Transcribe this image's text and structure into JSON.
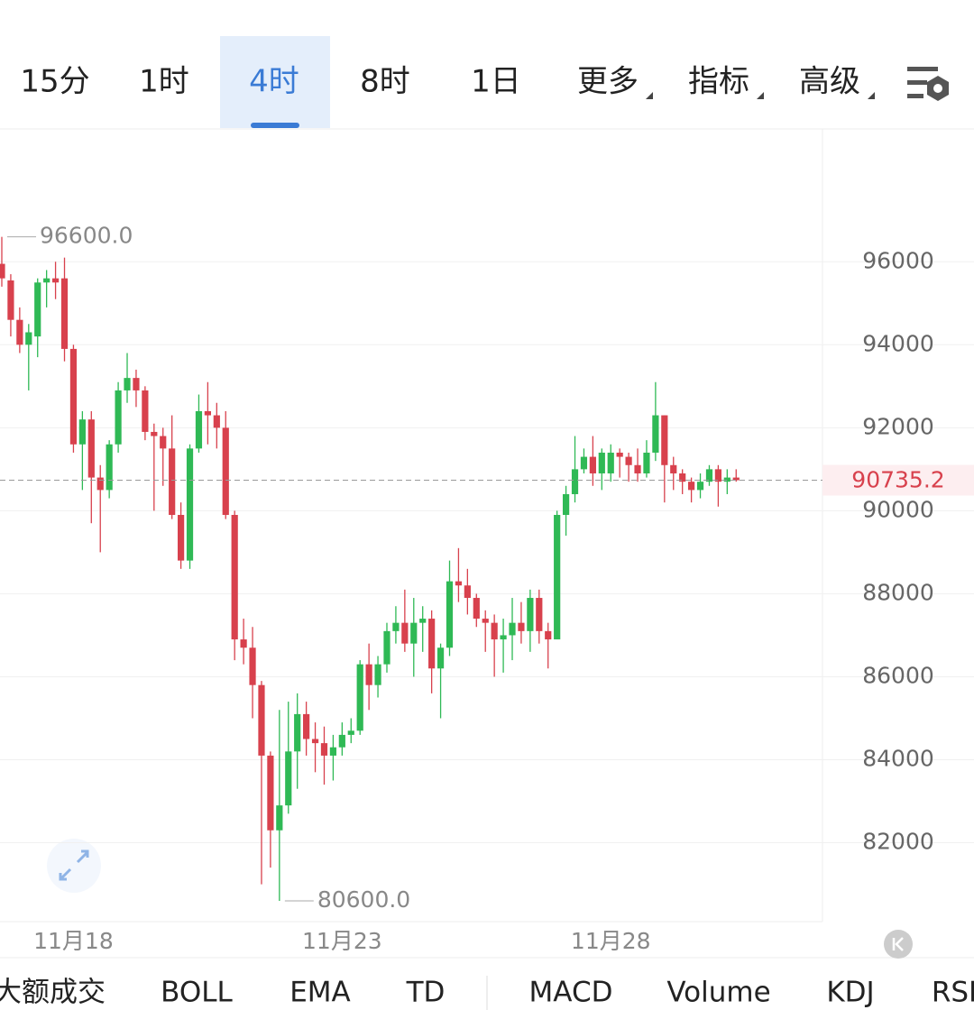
{
  "tabs": [
    "15分",
    "1时",
    "4时",
    "8时",
    "1日",
    "更多",
    "指标",
    "高级"
  ],
  "active_tab_index": 2,
  "indicator_tabs": [
    "大额成交",
    "BOLL",
    "EMA",
    "TD",
    "MACD",
    "Volume",
    "KDJ",
    "RSI"
  ],
  "chart_data": {
    "type": "candlestick",
    "categories": [
      null,
      null,
      null,
      null,
      null,
      null,
      null,
      null,
      "11月18",
      null,
      null,
      null,
      null,
      null,
      null,
      null,
      null,
      null,
      null,
      null,
      null,
      null,
      null,
      null,
      null,
      null,
      null,
      null,
      null,
      null,
      null,
      null,
      null,
      null,
      null,
      null,
      null,
      null,
      "11月23",
      null,
      null,
      null,
      null,
      null,
      null,
      null,
      null,
      null,
      null,
      null,
      null,
      null,
      null,
      null,
      null,
      null,
      null,
      null,
      null,
      null,
      null,
      null,
      null,
      null,
      null,
      null,
      null,
      null,
      "11月28",
      null,
      null,
      null,
      null,
      null,
      null,
      null,
      null,
      null,
      null,
      null,
      null,
      null,
      null
    ],
    "open": [
      95950,
      95550,
      94600,
      94000,
      94200,
      95500,
      95600,
      95600,
      93900,
      91600,
      92200,
      90800,
      90500,
      91600,
      92900,
      93200,
      92900,
      91900,
      91800,
      91500,
      89900,
      88800,
      91500,
      92400,
      92300,
      92000,
      89900,
      86900,
      86700,
      85800,
      84100,
      82300,
      82900,
      84200,
      85100,
      84500,
      84400,
      84100,
      84300,
      84600,
      84700,
      86300,
      85800,
      86300,
      87100,
      87300,
      86800,
      87300,
      87400,
      86200,
      86700,
      88300,
      88200,
      87900,
      87400,
      87300,
      86900,
      87000,
      87300,
      87100,
      87900,
      87100,
      86900,
      89900,
      90400,
      91000,
      91300,
      90900,
      90900,
      91400,
      91300,
      91100,
      90900,
      91400,
      92300,
      91100,
      90900,
      90700,
      90500,
      90700,
      91000,
      90700,
      90800
    ],
    "high": [
      96600,
      95700,
      94900,
      94500,
      95600,
      95800,
      96000,
      96100,
      94000,
      92400,
      92400,
      91100,
      91700,
      93100,
      93800,
      93400,
      93000,
      92100,
      92000,
      92300,
      90200,
      91600,
      92800,
      93100,
      92600,
      92400,
      90000,
      87400,
      87200,
      85900,
      84200,
      85200,
      85400,
      85600,
      85400,
      84900,
      84800,
      84600,
      84900,
      85000,
      86400,
      86800,
      86500,
      87300,
      87700,
      88100,
      87900,
      87700,
      87600,
      86800,
      88800,
      89100,
      88600,
      88000,
      87600,
      87500,
      87400,
      87900,
      87800,
      88100,
      88100,
      87300,
      90000,
      90600,
      91800,
      91500,
      91800,
      91500,
      91600,
      91500,
      91400,
      91500,
      91700,
      93100,
      92300,
      91300,
      91000,
      90800,
      90900,
      91100,
      91100,
      91000,
      91000
    ],
    "low": [
      95400,
      94200,
      93800,
      92900,
      93700,
      94900,
      95100,
      93600,
      91400,
      90500,
      89700,
      89000,
      90300,
      91400,
      92600,
      92500,
      91700,
      90000,
      90600,
      89800,
      88600,
      88600,
      91400,
      91600,
      91500,
      89800,
      86400,
      86300,
      85000,
      81000,
      81400,
      80600,
      82700,
      83300,
      84100,
      83700,
      83400,
      83500,
      84100,
      84400,
      84600,
      85200,
      85500,
      86100,
      86800,
      86600,
      86000,
      86600,
      85600,
      85000,
      86500,
      87800,
      87500,
      87200,
      86600,
      86000,
      86100,
      86400,
      86800,
      86600,
      86800,
      86200,
      86900,
      89400,
      90200,
      90900,
      90600,
      90500,
      90700,
      90800,
      90700,
      90700,
      90800,
      91200,
      90200,
      90500,
      90400,
      90200,
      90300,
      90600,
      90100,
      90400,
      90700
    ],
    "close": [
      95600,
      94600,
      94000,
      94300,
      95500,
      95600,
      95500,
      93900,
      91600,
      92200,
      90800,
      90500,
      91600,
      92900,
      93200,
      92900,
      91900,
      91800,
      91500,
      89900,
      88800,
      91500,
      92400,
      92300,
      92000,
      89900,
      86900,
      86700,
      85800,
      84100,
      82300,
      82900,
      84200,
      85100,
      84500,
      84400,
      84100,
      84300,
      84600,
      84700,
      86300,
      85800,
      86300,
      87100,
      87300,
      86800,
      87300,
      87400,
      86200,
      86700,
      88300,
      88200,
      87900,
      87400,
      87300,
      86900,
      87000,
      87300,
      87100,
      87900,
      87100,
      86900,
      89900,
      90400,
      91000,
      91300,
      90900,
      91400,
      91400,
      91300,
      91100,
      90900,
      91400,
      92300,
      91100,
      90900,
      90700,
      90500,
      90700,
      91000,
      90700,
      90800,
      90735.2
    ],
    "up_color": "#2fb955",
    "down_color": "#d8414d",
    "ylim": [
      80100,
      99200
    ],
    "yticks": [
      82000,
      84000,
      86000,
      88000,
      90000,
      92000,
      94000,
      96000
    ],
    "grid": true,
    "last_price": 90735.2,
    "annotations": [
      {
        "value": 96600,
        "label": "96600.0",
        "kind": "high"
      },
      {
        "value": 80600,
        "label": "80600.0",
        "kind": "low"
      }
    ]
  }
}
